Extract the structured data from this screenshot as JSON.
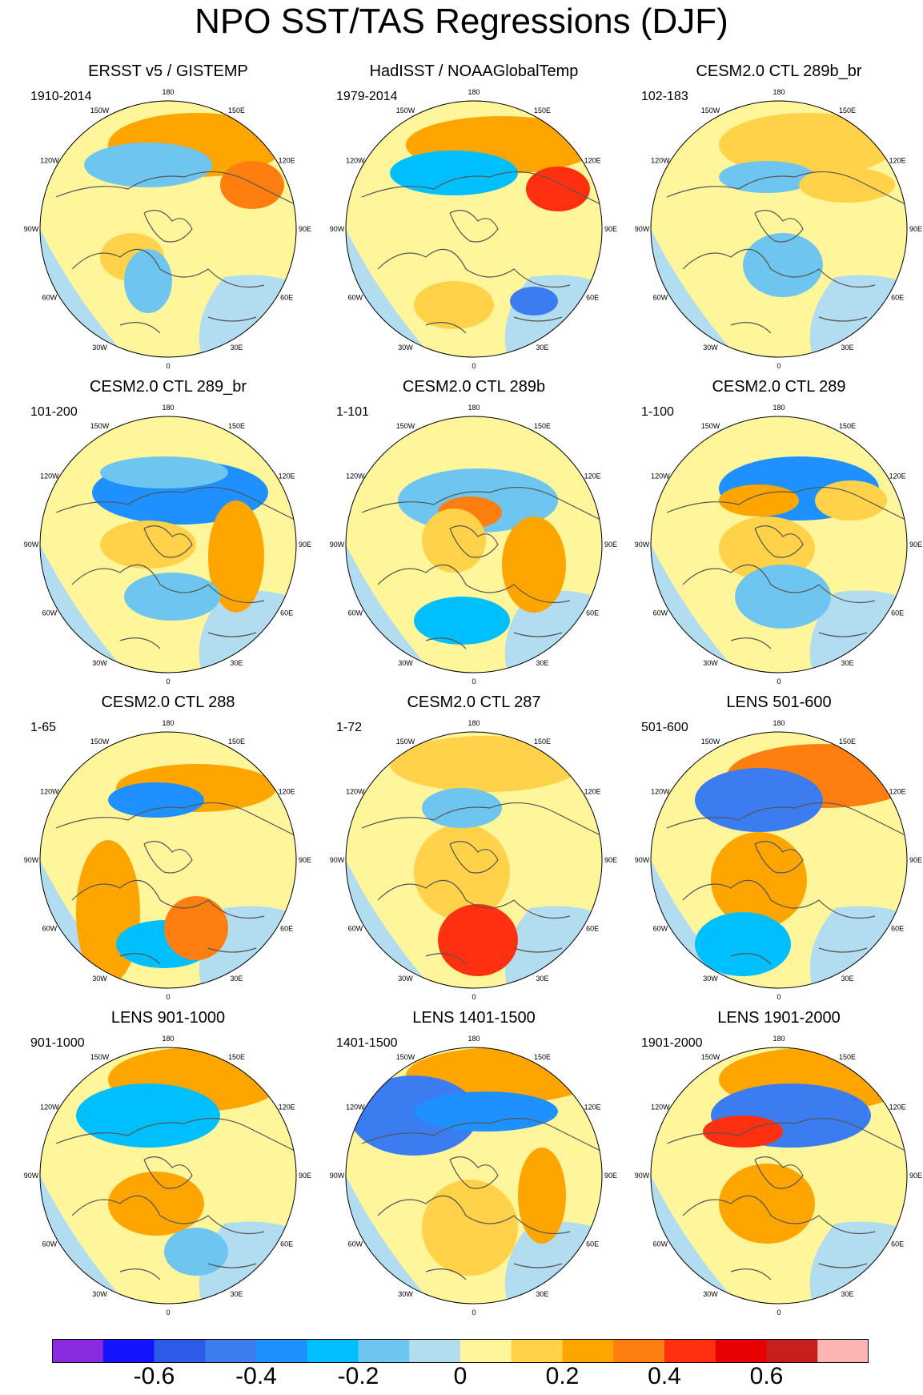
{
  "title": "NPO SST/TAS Regressions (DJF)",
  "longitude_labels": [
    "180",
    "150E",
    "120E",
    "90E",
    "60E",
    "30E",
    "0",
    "30W",
    "60W",
    "90W",
    "120W",
    "150W"
  ],
  "panels": [
    {
      "title": "ERSST v5 / GISTEMP",
      "period": "1910-2014"
    },
    {
      "title": "HadISST / NOAAGlobalTemp",
      "period": "1979-2014"
    },
    {
      "title": "CESM2.0 CTL 289b_br",
      "period": "102-183"
    },
    {
      "title": "CESM2.0 CTL 289_br",
      "period": "101-200"
    },
    {
      "title": "CESM2.0 CTL 289b",
      "period": "1-101"
    },
    {
      "title": "CESM2.0 CTL 289",
      "period": "1-100"
    },
    {
      "title": "CESM2.0 CTL 288",
      "period": "1-65"
    },
    {
      "title": "CESM2.0 CTL 287",
      "period": "1-72"
    },
    {
      "title": "LENS 501-600",
      "period": "501-600"
    },
    {
      "title": "LENS 901-1000",
      "period": "901-1000"
    },
    {
      "title": "LENS 1401-1500",
      "period": "1401-1500"
    },
    {
      "title": "LENS 1901-2000",
      "period": "1901-2000"
    }
  ],
  "colorbar": {
    "colors": [
      "#8a2be2",
      "#1414ff",
      "#2d5be8",
      "#3b7cf0",
      "#1e90ff",
      "#00bfff",
      "#6ec6f0",
      "#b2dcf0",
      "#fff59a",
      "#ffd24a",
      "#ffa500",
      "#ff7e10",
      "#ff3010",
      "#e60000",
      "#c81e1e",
      "#ffb4b4"
    ],
    "labels": [
      "-0.6",
      "-0.4",
      "-0.2",
      "0",
      "0.2",
      "0.4",
      "0.6"
    ],
    "label_values": [
      -0.6,
      -0.4,
      -0.2,
      0,
      0.2,
      0.4,
      0.6
    ],
    "range": [
      -0.8,
      0.8
    ]
  },
  "colors": {
    "land_positive": "#fff59a",
    "land_negative": "#b2dcf0",
    "coast": "#555555"
  }
}
